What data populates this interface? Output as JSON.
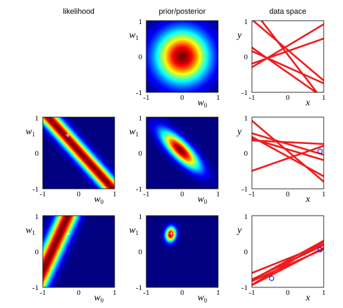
{
  "figure": {
    "column_titles": [
      "likelihood",
      "prior/posterior",
      "data space"
    ]
  },
  "chart_data": [
    {
      "type": "heatmap",
      "panel": "prior/posterior",
      "row": 1,
      "xlabel": "w0",
      "ylabel": "w1",
      "xlim": [
        -1,
        1
      ],
      "ylim": [
        -1,
        1
      ],
      "xticks": [
        "-1",
        "0",
        "1"
      ],
      "yticks": [
        "1",
        "0",
        "-1"
      ],
      "distribution": {
        "mean": [
          0,
          0
        ],
        "std_w0": 0.5,
        "std_w1": 0.5,
        "corr": 0.0
      }
    },
    {
      "type": "line",
      "panel": "data space",
      "row": 1,
      "xlabel": "x",
      "ylabel": "y",
      "xlim": [
        -1,
        1
      ],
      "ylim": [
        -1,
        1
      ],
      "xticks": [
        "-1",
        "0",
        "1"
      ],
      "yticks": [
        "1",
        "0",
        "-1"
      ],
      "line_color": "#ee1c1c",
      "lines": [
        {
          "w0": 0.18,
          "w1": -0.85
        },
        {
          "w0": 0.3,
          "w1": 0.6
        },
        {
          "w0": 0.15,
          "w1": 0.35
        },
        {
          "w0": -0.3,
          "w1": -0.45
        },
        {
          "w0": -0.45,
          "w1": -0.7
        },
        {
          "w0": 0.05,
          "w1": -1.3
        }
      ]
    },
    {
      "type": "heatmap",
      "panel": "likelihood",
      "row": 2,
      "xlabel": "w0",
      "ylabel": "w1",
      "xlim": [
        -1,
        1
      ],
      "ylim": [
        -1,
        1
      ],
      "xticks": [
        "-1",
        "0",
        "1"
      ],
      "yticks": [
        "1",
        "0",
        "-1"
      ],
      "likelihood": {
        "points": [
          {
            "x": 0.9,
            "y": 0.05
          }
        ],
        "noise_sd": 0.2
      },
      "true_w": {
        "w0": -0.3,
        "w1": 0.5
      }
    },
    {
      "type": "heatmap",
      "panel": "prior/posterior",
      "row": 2,
      "xlabel": "w0",
      "ylabel": "w1",
      "xlim": [
        -1,
        1
      ],
      "ylim": [
        -1,
        1
      ],
      "xticks": [
        "-1",
        "0",
        "1"
      ],
      "yticks": [
        "1",
        "0",
        "-1"
      ],
      "distribution": {
        "mean": [
          -0.05,
          0.08
        ],
        "std_w0": 0.36,
        "std_w1": 0.36,
        "corr": -0.8
      }
    },
    {
      "type": "line",
      "panel": "data space",
      "row": 2,
      "xlabel": "x",
      "ylabel": "y",
      "xlim": [
        -1,
        1
      ],
      "ylim": [
        -1,
        1
      ],
      "xticks": [
        "-1",
        "0",
        "1"
      ],
      "yticks": [
        "1",
        "0",
        "-1"
      ],
      "line_color": "#ee1c1c",
      "points": [
        {
          "x": 0.9,
          "y": 0.05
        }
      ],
      "lines": [
        {
          "w0": 0.3,
          "w1": -0.05
        },
        {
          "w0": 0.25,
          "w1": -0.3
        },
        {
          "w0": 0.1,
          "w1": -0.3
        },
        {
          "w0": -0.1,
          "w1": -0.55
        },
        {
          "w0": 0.05,
          "w1": -0.85
        },
        {
          "w0": -0.15,
          "w1": 0.35
        }
      ]
    },
    {
      "type": "heatmap",
      "panel": "likelihood",
      "row": 3,
      "xlabel": "w0",
      "ylabel": "w1",
      "xlim": [
        -1,
        1
      ],
      "ylim": [
        -1,
        1
      ],
      "xticks": [
        "-1",
        "0",
        "1"
      ],
      "yticks": [
        "1",
        "0",
        "-1"
      ],
      "likelihood": {
        "points": [
          {
            "x": -0.45,
            "y": -0.75
          }
        ],
        "noise_sd": 0.2
      },
      "true_w": {
        "w0": -0.3,
        "w1": 0.5
      }
    },
    {
      "type": "heatmap",
      "panel": "prior/posterior",
      "row": 3,
      "xlabel": "w0",
      "ylabel": "w1",
      "xlim": [
        -1,
        1
      ],
      "ylim": [
        -1,
        1
      ],
      "xticks": [
        "-1",
        "0",
        "1"
      ],
      "yticks": [
        "1",
        "0",
        "-1"
      ],
      "distribution": {
        "mean": [
          -0.32,
          0.48
        ],
        "std_w0": 0.1,
        "std_w1": 0.14,
        "corr": 0.1
      },
      "true_w": {
        "w0": -0.3,
        "w1": 0.5
      }
    },
    {
      "type": "line",
      "panel": "data space",
      "row": 3,
      "xlabel": "x",
      "ylabel": "y",
      "xlim": [
        -1,
        1
      ],
      "ylim": [
        -1,
        1
      ],
      "xticks": [
        "-1",
        "0",
        "1"
      ],
      "yticks": [
        "1",
        "0",
        "-1"
      ],
      "line_color": "#ee1c1c",
      "points": [
        {
          "x": 0.9,
          "y": 0.05
        },
        {
          "x": -0.45,
          "y": -0.75
        }
      ],
      "lines": [
        {
          "w0": -0.3,
          "w1": 0.48
        },
        {
          "w0": -0.38,
          "w1": 0.45
        },
        {
          "w0": -0.25,
          "w1": 0.55
        },
        {
          "w0": -0.2,
          "w1": 0.4
        },
        {
          "w0": -0.42,
          "w1": 0.52
        },
        {
          "w0": -0.33,
          "w1": 0.6
        }
      ]
    }
  ]
}
